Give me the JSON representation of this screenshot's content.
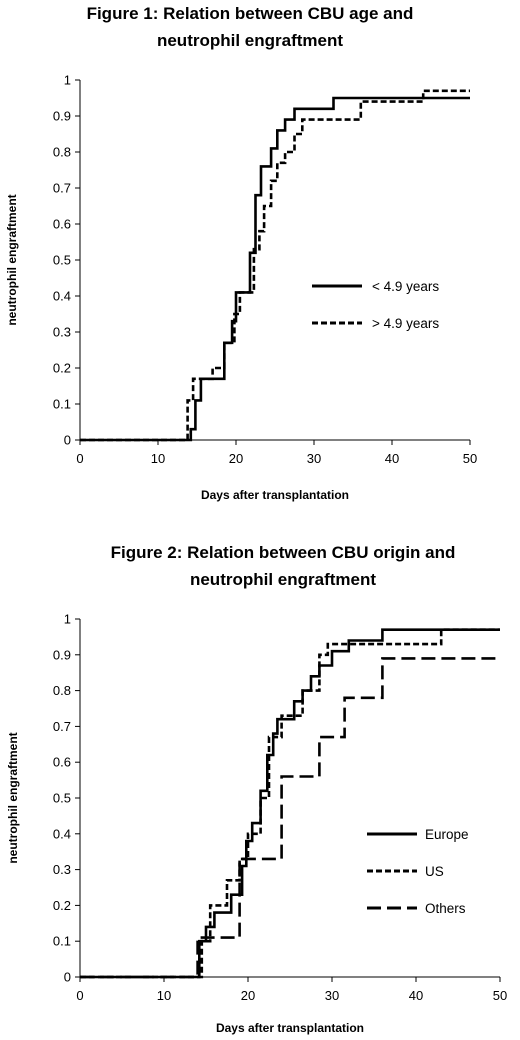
{
  "chart_data": [
    {
      "type": "line",
      "step": true,
      "title_lines": [
        "Figure 1: Relation between CBU age and",
        "neutrophil engraftment"
      ],
      "xlabel": "Days after transplantation",
      "ylabel": "neutrophil engraftment",
      "xlim": [
        0,
        50
      ],
      "ylim": [
        0,
        1
      ],
      "xticks": [
        "0",
        "10",
        "20",
        "30",
        "40",
        "50"
      ],
      "yticks": [
        "0",
        "0.1",
        "0.2",
        "0.3",
        "0.4",
        "0.5",
        "0.6",
        "0.7",
        "0.8",
        "0.9",
        "1"
      ],
      "grid": false,
      "legend_position": "right",
      "series": [
        {
          "name": "< 4.9 years",
          "dash": "solid",
          "points": [
            [
              0,
              0
            ],
            [
              14.2,
              0
            ],
            [
              14.2,
              0.03
            ],
            [
              14.8,
              0.03
            ],
            [
              14.8,
              0.11
            ],
            [
              15.5,
              0.11
            ],
            [
              15.5,
              0.17
            ],
            [
              18.5,
              0.17
            ],
            [
              18.5,
              0.27
            ],
            [
              19.5,
              0.27
            ],
            [
              19.5,
              0.33
            ],
            [
              20,
              0.33
            ],
            [
              20,
              0.41
            ],
            [
              21.8,
              0.41
            ],
            [
              21.8,
              0.52
            ],
            [
              22.5,
              0.52
            ],
            [
              22.5,
              0.68
            ],
            [
              23.2,
              0.68
            ],
            [
              23.2,
              0.76
            ],
            [
              24.5,
              0.76
            ],
            [
              24.5,
              0.81
            ],
            [
              25.3,
              0.81
            ],
            [
              25.3,
              0.86
            ],
            [
              26.3,
              0.86
            ],
            [
              26.3,
              0.89
            ],
            [
              27.5,
              0.89
            ],
            [
              27.5,
              0.92
            ],
            [
              32.5,
              0.92
            ],
            [
              32.5,
              0.95
            ],
            [
              50,
              0.95
            ]
          ]
        },
        {
          "name": "> 4.9 years",
          "dash": "dashed",
          "points": [
            [
              0,
              0
            ],
            [
              13.8,
              0
            ],
            [
              13.8,
              0.11
            ],
            [
              14.5,
              0.11
            ],
            [
              14.5,
              0.17
            ],
            [
              17,
              0.17
            ],
            [
              17,
              0.2
            ],
            [
              18.5,
              0.2
            ],
            [
              18.5,
              0.27
            ],
            [
              19.8,
              0.27
            ],
            [
              19.8,
              0.35
            ],
            [
              20.5,
              0.35
            ],
            [
              20.5,
              0.41
            ],
            [
              22.3,
              0.41
            ],
            [
              22.3,
              0.53
            ],
            [
              23,
              0.53
            ],
            [
              23,
              0.58
            ],
            [
              23.6,
              0.58
            ],
            [
              23.6,
              0.65
            ],
            [
              24.5,
              0.65
            ],
            [
              24.5,
              0.72
            ],
            [
              25.3,
              0.72
            ],
            [
              25.3,
              0.77
            ],
            [
              26.3,
              0.77
            ],
            [
              26.3,
              0.8
            ],
            [
              27.5,
              0.8
            ],
            [
              27.5,
              0.85
            ],
            [
              28.5,
              0.85
            ],
            [
              28.5,
              0.89
            ],
            [
              36,
              0.89
            ],
            [
              36,
              0.94
            ],
            [
              44,
              0.94
            ],
            [
              44,
              0.97
            ],
            [
              50,
              0.97
            ]
          ]
        }
      ]
    },
    {
      "type": "line",
      "step": true,
      "title_lines": [
        "Figure 2: Relation between CBU origin and",
        "neutrophil engraftment"
      ],
      "xlabel": "Days after transplantation",
      "ylabel": "neutrophil engraftment",
      "xlim": [
        0,
        50
      ],
      "ylim": [
        0,
        1
      ],
      "xticks": [
        "0",
        "10",
        "20",
        "30",
        "40",
        "50"
      ],
      "yticks": [
        "0",
        "0.1",
        "0.2",
        "0.3",
        "0.4",
        "0.5",
        "0.6",
        "0.7",
        "0.8",
        "0.9",
        "1"
      ],
      "grid": false,
      "legend_position": "right",
      "series": [
        {
          "name": "Europe",
          "dash": "solid",
          "points": [
            [
              0,
              0
            ],
            [
              14.2,
              0
            ],
            [
              14.2,
              0.1
            ],
            [
              15,
              0.1
            ],
            [
              15,
              0.14
            ],
            [
              16,
              0.14
            ],
            [
              16,
              0.18
            ],
            [
              18,
              0.18
            ],
            [
              18,
              0.23
            ],
            [
              19.3,
              0.23
            ],
            [
              19.3,
              0.31
            ],
            [
              19.8,
              0.31
            ],
            [
              19.8,
              0.38
            ],
            [
              20.5,
              0.38
            ],
            [
              20.5,
              0.43
            ],
            [
              21.5,
              0.43
            ],
            [
              21.5,
              0.52
            ],
            [
              22.3,
              0.52
            ],
            [
              22.3,
              0.62
            ],
            [
              23,
              0.62
            ],
            [
              23,
              0.68
            ],
            [
              23.5,
              0.68
            ],
            [
              23.5,
              0.72
            ],
            [
              25.5,
              0.72
            ],
            [
              25.5,
              0.77
            ],
            [
              26.5,
              0.77
            ],
            [
              26.5,
              0.8
            ],
            [
              27.5,
              0.8
            ],
            [
              27.5,
              0.84
            ],
            [
              28.5,
              0.84
            ],
            [
              28.5,
              0.87
            ],
            [
              30,
              0.87
            ],
            [
              30,
              0.91
            ],
            [
              32,
              0.91
            ],
            [
              32,
              0.94
            ],
            [
              36,
              0.94
            ],
            [
              36,
              0.97
            ],
            [
              50,
              0.97
            ]
          ]
        },
        {
          "name": "US",
          "dash": "dashed",
          "points": [
            [
              0,
              0
            ],
            [
              14.5,
              0
            ],
            [
              14.5,
              0.1
            ],
            [
              15.5,
              0.1
            ],
            [
              15.5,
              0.2
            ],
            [
              17.5,
              0.2
            ],
            [
              17.5,
              0.27
            ],
            [
              19,
              0.27
            ],
            [
              19,
              0.33
            ],
            [
              20,
              0.33
            ],
            [
              20,
              0.4
            ],
            [
              21.5,
              0.4
            ],
            [
              21.5,
              0.5
            ],
            [
              22.5,
              0.5
            ],
            [
              22.5,
              0.67
            ],
            [
              24,
              0.67
            ],
            [
              24,
              0.73
            ],
            [
              26.5,
              0.73
            ],
            [
              26.5,
              0.8
            ],
            [
              28.5,
              0.8
            ],
            [
              28.5,
              0.9
            ],
            [
              29.5,
              0.9
            ],
            [
              29.5,
              0.93
            ],
            [
              43,
              0.93
            ],
            [
              43,
              0.97
            ],
            [
              50,
              0.97
            ]
          ]
        },
        {
          "name": "Others",
          "dash": "longdash",
          "points": [
            [
              0,
              0
            ],
            [
              14,
              0
            ],
            [
              14,
              0.11
            ],
            [
              19,
              0.11
            ],
            [
              19,
              0.33
            ],
            [
              24,
              0.33
            ],
            [
              24,
              0.56
            ],
            [
              28.5,
              0.56
            ],
            [
              28.5,
              0.67
            ],
            [
              31.5,
              0.67
            ],
            [
              31.5,
              0.78
            ],
            [
              36,
              0.78
            ],
            [
              36,
              0.89
            ],
            [
              50,
              0.89
            ]
          ]
        }
      ]
    }
  ]
}
